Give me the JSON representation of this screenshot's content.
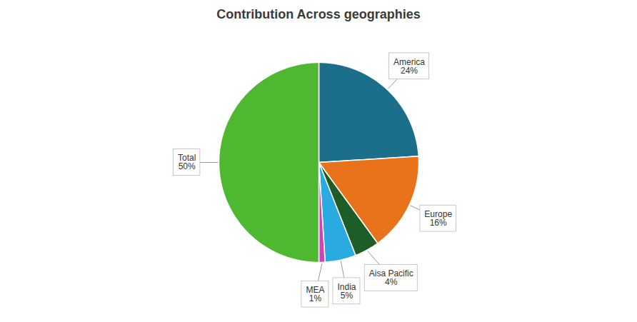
{
  "chart_data": {
    "type": "pie",
    "title": "Contribution Across geographies",
    "categories": [
      "America",
      "Europe",
      "Aisa Pacific",
      "India",
      "MEA",
      "Total"
    ],
    "values": [
      24,
      16,
      4,
      5,
      1,
      50
    ],
    "value_labels": [
      "24%",
      "16%",
      "4%",
      "5%",
      "1%",
      "50%"
    ],
    "colors": [
      "#1b6f8a",
      "#e8731a",
      "#1e5c28",
      "#29aae1",
      "#cc44bb",
      "#4db830"
    ],
    "data_labels": true
  }
}
